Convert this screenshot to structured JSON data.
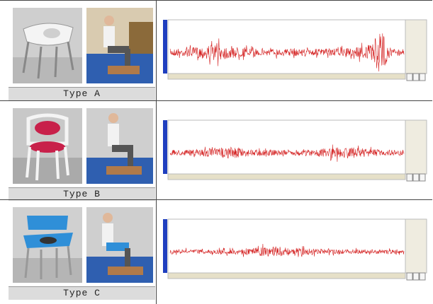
{
  "rows": [
    {
      "label": "Type A"
    },
    {
      "label": "Type B"
    },
    {
      "label": "Type C"
    }
  ]
}
